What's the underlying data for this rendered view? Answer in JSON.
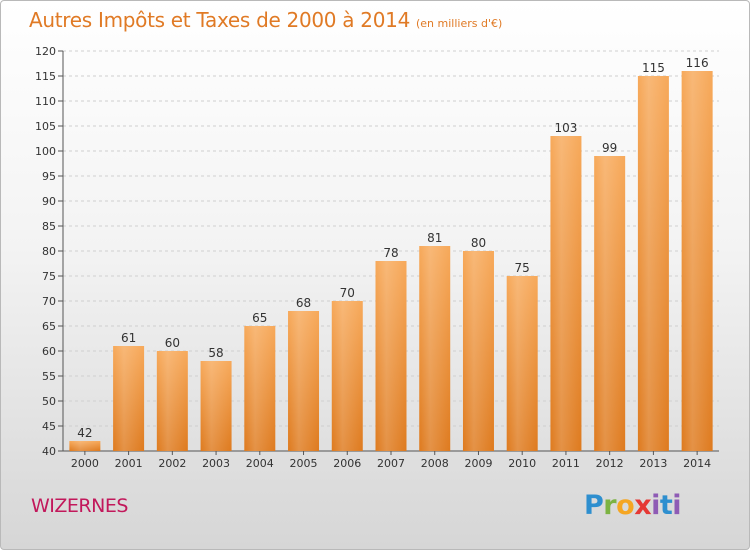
{
  "title": {
    "main": "Autres Impôts et Taxes de 2000 à 2014",
    "unit": "(en milliers d'€)"
  },
  "commune": "WIZERNES",
  "logo": {
    "text": "Proxiti"
  },
  "colors": {
    "bar_top": "#f7a95a",
    "bar_bottom": "#de7a1e",
    "title": "#e07a25",
    "commune": "#c2185b"
  },
  "chart_data": {
    "type": "bar",
    "categories": [
      "2000",
      "2001",
      "2002",
      "2003",
      "2004",
      "2005",
      "2006",
      "2007",
      "2008",
      "2009",
      "2010",
      "2011",
      "2012",
      "2013",
      "2014"
    ],
    "values": [
      42,
      61,
      60,
      58,
      65,
      68,
      70,
      78,
      81,
      80,
      75,
      103,
      99,
      115,
      116
    ],
    "ylim": [
      40,
      120
    ],
    "yticks": [
      40,
      45,
      50,
      55,
      60,
      65,
      70,
      75,
      80,
      85,
      90,
      95,
      100,
      105,
      110,
      115,
      120
    ],
    "grid": true,
    "legend": "none"
  }
}
